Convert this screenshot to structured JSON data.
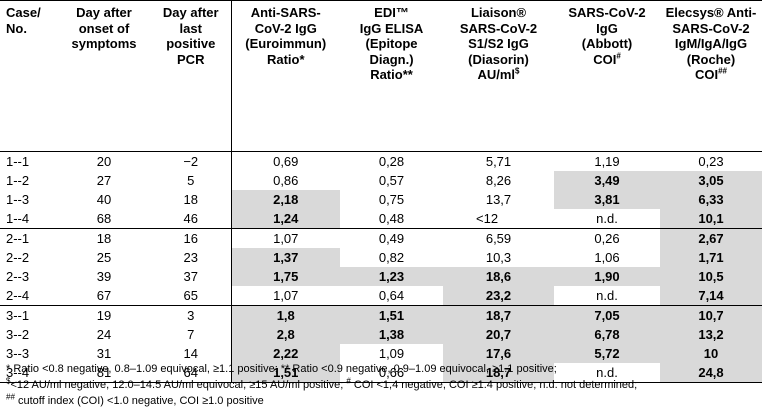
{
  "headers": [
    "Case/\nNo.",
    "Day after\nonset of\nsymptoms",
    "Day after\nlast\npositive\nPCR",
    "Anti-SARS-\nCoV-2 IgG\n(Euroimmun)\nRatio*",
    "EDI™\nIgG ELISA\n(Epitope\nDiagn.)\nRatio**",
    "Liaison®\nSARS-CoV-2\nS1/S2 IgG\n(Diasorin)\nAU/ml$",
    "SARS-CoV-2\nIgG\n(Abbott)\nCOI#",
    "Elecsys® Anti-\nSARS-CoV-2\nIgM/IgA/IgG\n(Roche)\nCOI##"
  ],
  "rows": [
    [
      "1--1",
      "20",
      "−2",
      "0,69",
      "0,28",
      "5,71",
      "1,19",
      "0,23"
    ],
    [
      "1--2",
      "27",
      "5",
      "0,86",
      "0,57",
      "8,26",
      "3,49",
      "3,05"
    ],
    [
      "1--3",
      "40",
      "18",
      "2,18",
      "0,75",
      "13,7",
      "3,81",
      "6,33"
    ],
    [
      "1--4",
      "68",
      "46",
      "1,24",
      "0,48",
      "<12",
      "n.d.",
      "10,1"
    ],
    [
      "2--1",
      "18",
      "16",
      "1,07",
      "0,49",
      "6,59",
      "0,26",
      "2,67"
    ],
    [
      "2--2",
      "25",
      "23",
      "1,37",
      "0,82",
      "10,3",
      "1,06",
      "1,71"
    ],
    [
      "2--3",
      "39",
      "37",
      "1,75",
      "1,23",
      "18,6",
      "1,90",
      "10,5"
    ],
    [
      "2--4",
      "67",
      "65",
      "1,07",
      "0,64",
      "23,2",
      "n.d.",
      "7,14"
    ],
    [
      "3--1",
      "19",
      "3",
      "1,8",
      "1,51",
      "18,7",
      "7,05",
      "10,7"
    ],
    [
      "3--2",
      "24",
      "7",
      "2,8",
      "1,38",
      "20,7",
      "6,78",
      "13,2"
    ],
    [
      "3--3",
      "31",
      "14",
      "2,22",
      "1,09",
      "17,6",
      "5,72",
      "10"
    ],
    [
      "3--4",
      "81",
      "64",
      "1,51",
      "0,66",
      "18,7",
      "n.d.",
      "24,8"
    ]
  ],
  "highlight_color": "#d9d9d9",
  "positive_cells": [
    [
      1,
      6
    ],
    [
      1,
      7
    ],
    [
      2,
      3
    ],
    [
      2,
      6
    ],
    [
      2,
      7
    ],
    [
      3,
      3
    ],
    [
      3,
      7
    ],
    [
      4,
      7
    ],
    [
      5,
      3
    ],
    [
      5,
      7
    ],
    [
      6,
      3
    ],
    [
      6,
      4
    ],
    [
      6,
      5
    ],
    [
      6,
      6
    ],
    [
      6,
      7
    ],
    [
      7,
      5
    ],
    [
      7,
      7
    ],
    [
      8,
      3
    ],
    [
      8,
      4
    ],
    [
      8,
      5
    ],
    [
      8,
      6
    ],
    [
      8,
      7
    ],
    [
      9,
      3
    ],
    [
      9,
      4
    ],
    [
      9,
      5
    ],
    [
      9,
      6
    ],
    [
      9,
      7
    ],
    [
      10,
      3
    ],
    [
      10,
      5
    ],
    [
      10,
      6
    ],
    [
      10,
      7
    ],
    [
      11,
      3
    ],
    [
      11,
      5
    ],
    [
      11,
      7
    ]
  ],
  "footnotes": {
    "line1": "* Ratio <0.8 negative, 0.8–1.09 equivocal, ≥1.1 positive; ** Ratio <0.9 negative, 0.9–1.09 equivocal, ≥1.1 positive;",
    "line2_sup1": "$",
    "line2_a": "<12 AU/ml negative, 12.0–14.5 AU/ml equivocal, ≥15 AU/ml positive; ",
    "line2_sup2": "#",
    "line2_b": " COI <1,4 negative, COI ≥1.4 positive; n.d. not determined;",
    "line3_sup": "##",
    "line3": " cutoff index (COI) <1.0 negative, COI ≥1.0 positive"
  }
}
